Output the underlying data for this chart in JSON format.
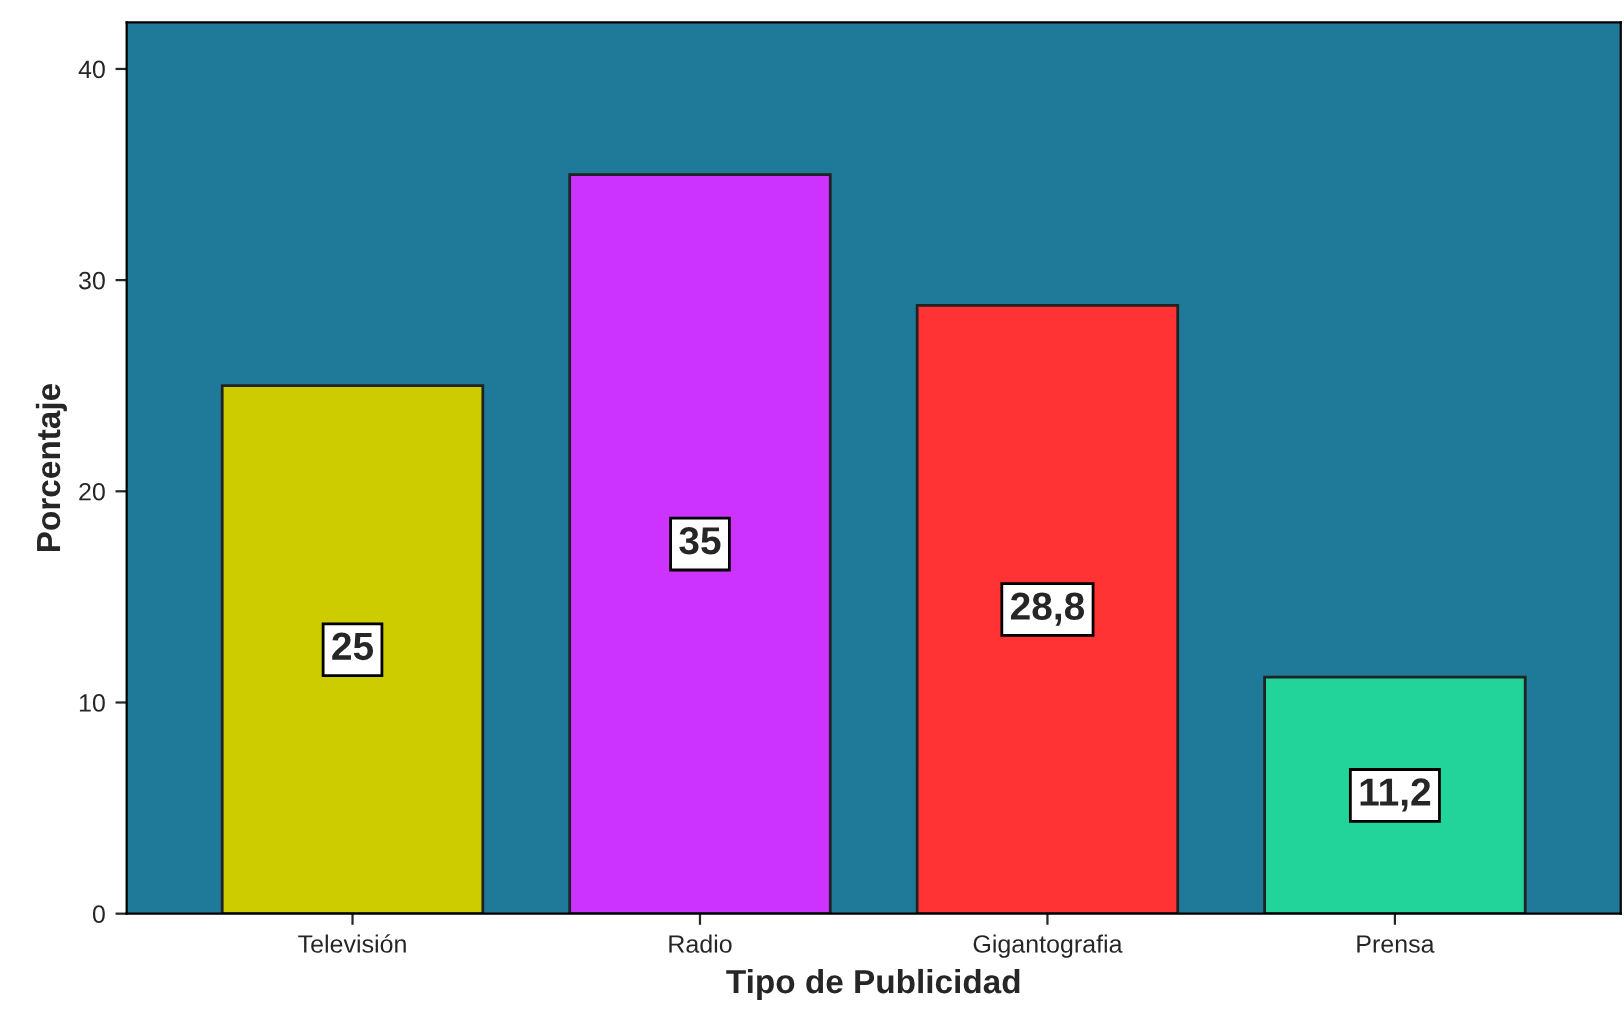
{
  "chart_data": {
    "type": "bar",
    "xlabel": "Tipo de Publicidad",
    "ylabel": "Porcentaje",
    "categories": [
      "Televisión",
      "Radio",
      "Gigantografia",
      "Prensa"
    ],
    "values": [
      25,
      35,
      28.8,
      11.2
    ],
    "colors": [
      "#cccc00",
      "#cc33ff",
      "#ff3333",
      "#22d39a"
    ],
    "value_labels": [
      "25",
      "35",
      "28,8",
      "11,2"
    ],
    "ylim": [
      0,
      42.2
    ],
    "yticks": [
      0,
      10,
      20,
      30,
      40
    ],
    "grid": false
  }
}
